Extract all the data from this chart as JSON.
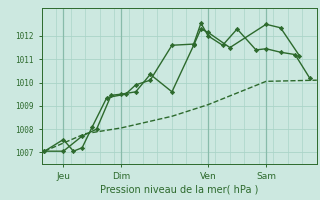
{
  "background_color": "#cce8e0",
  "grid_color": "#aad4c8",
  "line_color": "#2d6a2d",
  "marker_color": "#2d6a2d",
  "xlabel": "Pression niveau de la mer( hPa )",
  "ylim": [
    1006.5,
    1013.2
  ],
  "yticks": [
    1007,
    1008,
    1009,
    1010,
    1011,
    1012
  ],
  "xlim": [
    0,
    19
  ],
  "xtick_positions": [
    1.5,
    5.5,
    11.5,
    15.5
  ],
  "xtick_labels": [
    "Jeu",
    "Dim",
    "Ven",
    "Sam"
  ],
  "vlines": [
    1.5,
    5.5,
    11.5,
    15.5
  ],
  "series": [
    {
      "x": [
        0.2,
        1.5,
        2.2,
        2.8,
        3.5,
        4.5,
        5.8,
        6.5,
        7.5,
        9.0,
        10.5,
        11.0,
        11.5,
        12.5,
        13.5,
        14.8,
        15.5,
        16.5,
        17.5,
        18.5
      ],
      "y": [
        1007.05,
        1007.55,
        1007.05,
        1007.2,
        1008.1,
        1009.35,
        1009.5,
        1009.9,
        1010.1,
        1011.6,
        1011.65,
        1012.55,
        1012.0,
        1011.6,
        1012.3,
        1011.4,
        1011.45,
        1011.3,
        1011.2,
        1010.2
      ],
      "marker": "D",
      "linestyle": "-",
      "linewidth": 1.0
    },
    {
      "x": [
        0.2,
        1.5,
        2.8,
        3.8,
        4.8,
        5.5,
        6.5,
        7.5,
        9.0,
        10.5,
        11.0,
        11.5,
        13.0,
        15.5,
        16.5,
        17.8
      ],
      "y": [
        1007.05,
        1007.05,
        1007.7,
        1008.0,
        1009.45,
        1009.5,
        1009.6,
        1010.35,
        1009.6,
        1011.6,
        1012.3,
        1012.15,
        1011.5,
        1012.5,
        1012.35,
        1011.15
      ],
      "marker": "D",
      "linestyle": "-",
      "linewidth": 1.0
    },
    {
      "x": [
        0.2,
        3.0,
        5.5,
        9.0,
        11.5,
        15.5,
        19.0
      ],
      "y": [
        1007.05,
        1007.8,
        1008.05,
        1008.55,
        1009.05,
        1010.05,
        1010.1
      ],
      "marker": null,
      "linestyle": "--",
      "linewidth": 1.0
    }
  ]
}
